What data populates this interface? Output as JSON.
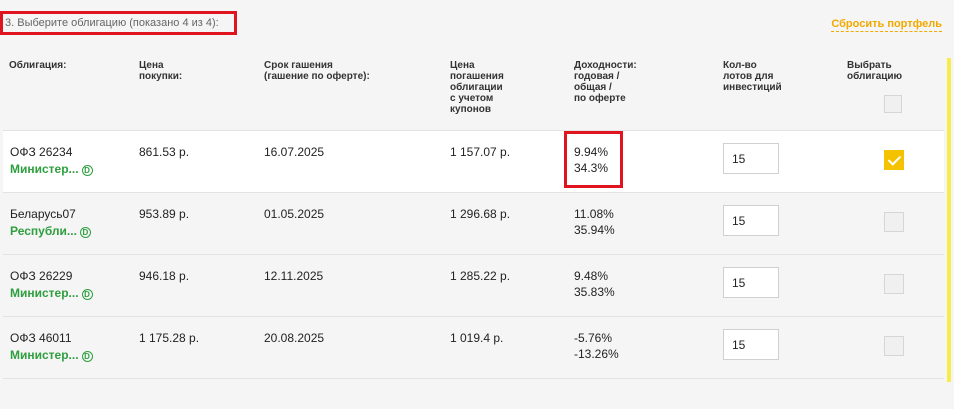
{
  "step_title": "3. Выберите облигацию (показано 4 из 4):",
  "reset_label": "Сбросить портфель",
  "headers": {
    "bond": "Облигация:",
    "price": "Цена\nпокупки:",
    "maturity": "Срок гашения\n(гашение по оферте):",
    "redeem": "Цена\nпогашения\nоблигации\nс учетом\nкупонов",
    "yield": "Доходности:\nгодовая /\nобщая /\nпо оферте",
    "lots": "Кол-во\nлотов для\nинвестиций",
    "select": "Выбрать\nоблигацию"
  },
  "doc_icon_label": "D",
  "rows": [
    {
      "name": "ОФЗ 26234",
      "issuer": "Министер...",
      "price": "861.53 р.",
      "maturity": "16.07.2025",
      "redeem": "1 157.07 р.",
      "yield_annual": "9.94%",
      "yield_total": "34.3%",
      "lots": "15",
      "selected": true
    },
    {
      "name": "Беларусь07",
      "issuer": "Республи...",
      "price": "953.89 р.",
      "maturity": "01.05.2025",
      "redeem": "1 296.68 р.",
      "yield_annual": "11.08%",
      "yield_total": "35.94%",
      "lots": "15",
      "selected": false
    },
    {
      "name": "ОФЗ 26229",
      "issuer": "Министер...",
      "price": "946.18 р.",
      "maturity": "12.11.2025",
      "redeem": "1 285.22 р.",
      "yield_annual": "9.48%",
      "yield_total": "35.83%",
      "lots": "15",
      "selected": false
    },
    {
      "name": "ОФЗ 46011",
      "issuer": "Министер...",
      "price": "1 175.28 р.",
      "maturity": "20.08.2025",
      "redeem": "1 019.4 р.",
      "yield_annual": "-5.76%",
      "yield_total": "-13.26%",
      "lots": "15",
      "selected": false
    }
  ],
  "colors": {
    "accent": "#f5c200",
    "link": "#2e9e3e",
    "highlight": "#e0141e"
  }
}
